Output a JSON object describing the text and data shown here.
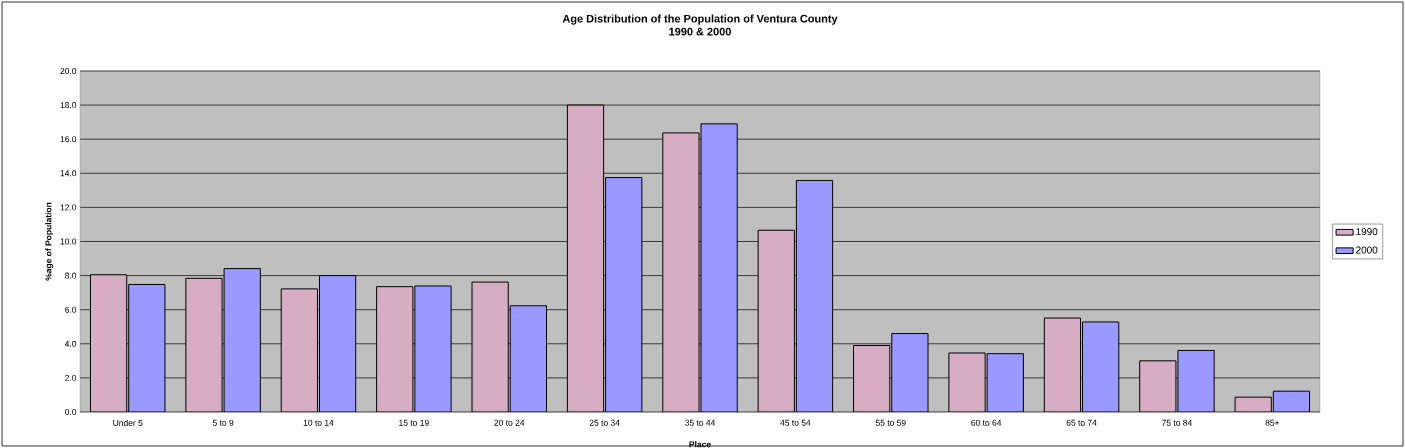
{
  "chart_data": {
    "type": "bar",
    "title": "Age Distribution of the Population of Ventura County",
    "subtitle": "1990 & 2000",
    "xlabel": "Place",
    "ylabel": "%age of Population",
    "categories": [
      "Under 5",
      "5 to 9",
      "10 to 14",
      "15 to 19",
      "20 to 24",
      "25 to 34",
      "35 to 44",
      "45 to 54",
      "55 to 59",
      "60 to 64",
      "65 to 74",
      "75 to 84",
      "85+"
    ],
    "series": [
      {
        "name": "1990",
        "color": "#d6adc2",
        "values": [
          8.05,
          7.84,
          7.22,
          7.35,
          7.62,
          18.0,
          16.37,
          10.66,
          3.9,
          3.46,
          5.51,
          3.0,
          0.87
        ]
      },
      {
        "name": "2000",
        "color": "#9999ff",
        "values": [
          7.48,
          8.41,
          8.0,
          7.39,
          6.23,
          13.75,
          16.9,
          13.58,
          4.6,
          3.42,
          5.28,
          3.61,
          1.22
        ]
      }
    ],
    "ylim": [
      0,
      20
    ],
    "yticks": [
      {
        "value": 0,
        "label": "0.0"
      },
      {
        "value": 2,
        "label": "2.0"
      },
      {
        "value": 4,
        "label": "4.0"
      },
      {
        "value": 6,
        "label": "6.0"
      },
      {
        "value": 8,
        "label": "8.0"
      },
      {
        "value": 10,
        "label": "10.0"
      },
      {
        "value": 12,
        "label": "12.0"
      },
      {
        "value": 14,
        "label": "14.0"
      },
      {
        "value": 16,
        "label": "16.0"
      },
      {
        "value": 18,
        "label": "18.0"
      },
      {
        "value": 20,
        "label": "20.0"
      }
    ],
    "grid": "y",
    "legend": "right"
  }
}
